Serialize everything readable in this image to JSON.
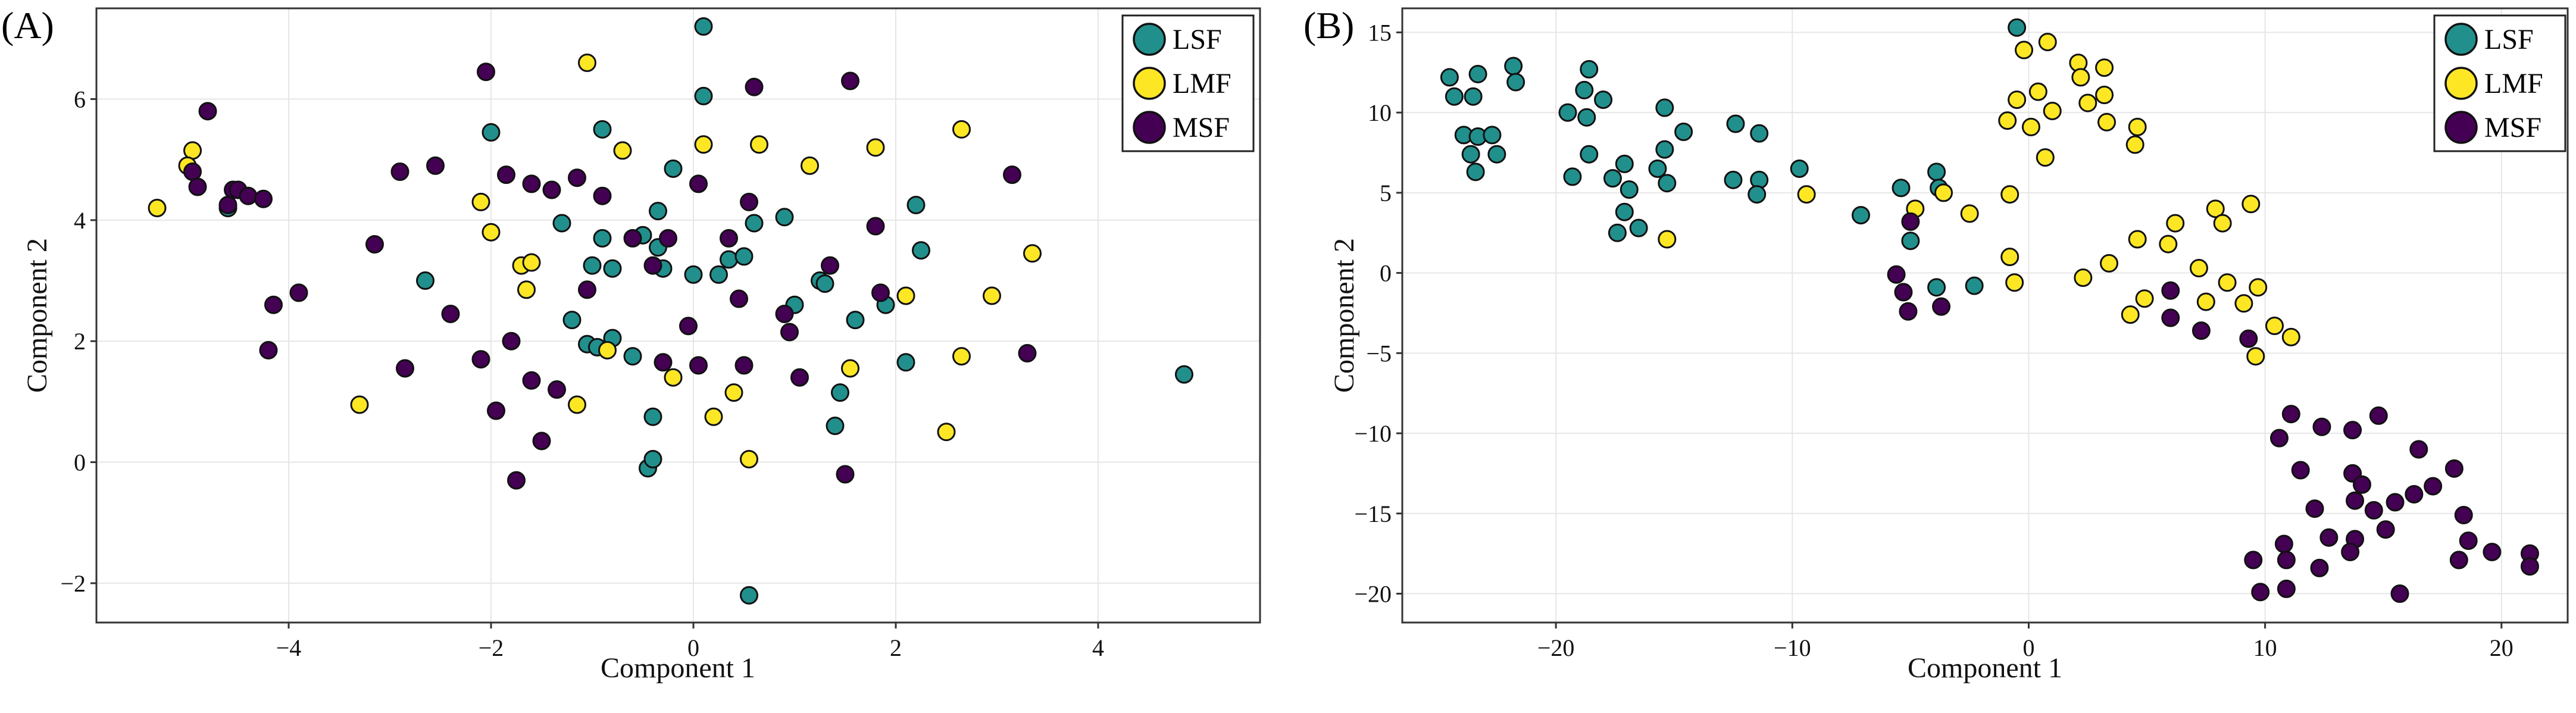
{
  "chart_data": [
    {
      "type": "scatter",
      "panel": "(A)",
      "xlabel": "Component 1",
      "ylabel": "Component 2",
      "xlim": [
        -5.9,
        5.6
      ],
      "ylim": [
        -2.65,
        7.5
      ],
      "xticks": [
        -4,
        -2,
        0,
        2,
        4
      ],
      "yticks": [
        -2,
        0,
        2,
        4,
        6
      ],
      "grid": true,
      "legend_position": "top-right",
      "series": [
        {
          "name": "LSF",
          "color": "#21908d",
          "points": [
            [
              0.1,
              7.2
            ],
            [
              0.1,
              6.05
            ],
            [
              -2.0,
              5.45
            ],
            [
              -0.9,
              5.5
            ],
            [
              -0.2,
              4.85
            ],
            [
              -4.6,
              4.2
            ],
            [
              -1.3,
              3.95
            ],
            [
              -0.35,
              4.15
            ],
            [
              -0.9,
              3.7
            ],
            [
              -0.5,
              3.75
            ],
            [
              -0.35,
              3.55
            ],
            [
              -0.3,
              3.2
            ],
            [
              -1.0,
              3.25
            ],
            [
              -0.8,
              3.2
            ],
            [
              -2.65,
              3.0
            ],
            [
              0.0,
              3.1
            ],
            [
              0.25,
              3.1
            ],
            [
              0.35,
              3.35
            ],
            [
              0.5,
              3.4
            ],
            [
              0.6,
              3.95
            ],
            [
              0.9,
              4.05
            ],
            [
              1.25,
              3.0
            ],
            [
              1.3,
              2.95
            ],
            [
              2.2,
              4.25
            ],
            [
              2.25,
              3.5
            ],
            [
              1.6,
              2.35
            ],
            [
              1.0,
              2.6
            ],
            [
              1.9,
              2.6
            ],
            [
              2.1,
              1.65
            ],
            [
              -1.2,
              2.35
            ],
            [
              -1.05,
              1.95
            ],
            [
              -0.95,
              1.9
            ],
            [
              -0.8,
              2.05
            ],
            [
              -0.6,
              1.75
            ],
            [
              -0.4,
              0.75
            ],
            [
              -0.45,
              -0.1
            ],
            [
              -0.4,
              0.05
            ],
            [
              1.45,
              1.15
            ],
            [
              1.4,
              0.6
            ],
            [
              0.55,
              -2.2
            ],
            [
              4.85,
              1.45
            ]
          ]
        },
        {
          "name": "LMF",
          "color": "#fde725",
          "points": [
            [
              -1.05,
              6.6
            ],
            [
              -0.7,
              5.15
            ],
            [
              -4.95,
              5.15
            ],
            [
              -5.0,
              4.9
            ],
            [
              -5.3,
              4.2
            ],
            [
              0.1,
              5.25
            ],
            [
              0.65,
              5.25
            ],
            [
              1.15,
              4.9
            ],
            [
              1.8,
              5.2
            ],
            [
              2.65,
              5.5
            ],
            [
              -2.1,
              4.3
            ],
            [
              -2.0,
              3.8
            ],
            [
              -1.7,
              3.25
            ],
            [
              -1.6,
              3.3
            ],
            [
              -1.65,
              2.85
            ],
            [
              2.1,
              2.75
            ],
            [
              2.95,
              2.75
            ],
            [
              3.35,
              3.45
            ],
            [
              -0.85,
              1.85
            ],
            [
              -0.2,
              1.4
            ],
            [
              0.2,
              0.75
            ],
            [
              0.4,
              1.15
            ],
            [
              1.55,
              1.55
            ],
            [
              2.65,
              1.75
            ],
            [
              2.5,
              0.5
            ],
            [
              0.55,
              0.05
            ],
            [
              -3.3,
              0.95
            ],
            [
              -1.15,
              0.95
            ]
          ]
        },
        {
          "name": "MSF",
          "color": "#440154",
          "points": [
            [
              -2.05,
              6.45
            ],
            [
              0.6,
              6.2
            ],
            [
              1.55,
              6.3
            ],
            [
              -4.8,
              5.8
            ],
            [
              -4.95,
              4.8
            ],
            [
              -4.9,
              4.55
            ],
            [
              -4.55,
              4.5
            ],
            [
              -4.5,
              4.5
            ],
            [
              -4.4,
              4.4
            ],
            [
              -4.25,
              4.35
            ],
            [
              -4.6,
              4.25
            ],
            [
              -2.55,
              4.9
            ],
            [
              -2.9,
              4.8
            ],
            [
              -1.85,
              4.75
            ],
            [
              -1.6,
              4.6
            ],
            [
              -1.4,
              4.5
            ],
            [
              -1.15,
              4.7
            ],
            [
              -0.9,
              4.4
            ],
            [
              0.05,
              4.6
            ],
            [
              0.55,
              4.3
            ],
            [
              3.15,
              4.75
            ],
            [
              -3.15,
              3.6
            ],
            [
              -0.6,
              3.7
            ],
            [
              -0.4,
              3.25
            ],
            [
              -0.25,
              3.7
            ],
            [
              0.35,
              3.7
            ],
            [
              1.8,
              3.9
            ],
            [
              -4.15,
              2.6
            ],
            [
              -3.9,
              2.8
            ],
            [
              -2.4,
              2.45
            ],
            [
              -1.8,
              2.0
            ],
            [
              -1.05,
              2.85
            ],
            [
              0.45,
              2.7
            ],
            [
              0.9,
              2.45
            ],
            [
              1.35,
              3.25
            ],
            [
              1.85,
              2.8
            ],
            [
              -4.2,
              1.85
            ],
            [
              -2.85,
              1.55
            ],
            [
              -2.1,
              1.7
            ],
            [
              -0.3,
              1.65
            ],
            [
              -0.05,
              2.25
            ],
            [
              0.05,
              1.6
            ],
            [
              0.5,
              1.6
            ],
            [
              0.95,
              2.15
            ],
            [
              1.05,
              1.4
            ],
            [
              3.3,
              1.8
            ],
            [
              -1.6,
              1.35
            ],
            [
              -1.35,
              1.2
            ],
            [
              -1.5,
              0.35
            ],
            [
              -1.95,
              0.85
            ],
            [
              -1.75,
              -0.3
            ],
            [
              1.5,
              -0.2
            ]
          ]
        }
      ]
    },
    {
      "type": "scatter",
      "panel": "(B)",
      "xlabel": "Component 1",
      "ylabel": "Component 2",
      "xlim": [
        -26.5,
        22.8
      ],
      "ylim": [
        -21.8,
        16.5
      ],
      "xticks": [
        -20,
        -10,
        0,
        10,
        20
      ],
      "yticks": [
        -20,
        -15,
        -10,
        -5,
        0,
        5,
        10,
        15
      ],
      "grid": true,
      "legend_position": "top-right",
      "series": [
        {
          "name": "LSF",
          "color": "#21908d",
          "points": [
            [
              -24.5,
              12.2
            ],
            [
              -24.3,
              11.0
            ],
            [
              -23.3,
              12.4
            ],
            [
              -23.5,
              11.0
            ],
            [
              -21.8,
              12.9
            ],
            [
              -21.7,
              11.9
            ],
            [
              -23.9,
              8.6
            ],
            [
              -23.3,
              8.5
            ],
            [
              -22.7,
              8.6
            ],
            [
              -23.6,
              7.4
            ],
            [
              -23.4,
              6.3
            ],
            [
              -22.5,
              7.4
            ],
            [
              -19.5,
              10.0
            ],
            [
              -18.8,
              11.4
            ],
            [
              -18.6,
              12.7
            ],
            [
              -18.7,
              9.7
            ],
            [
              -18.0,
              10.8
            ],
            [
              -19.3,
              6.0
            ],
            [
              -18.6,
              7.4
            ],
            [
              -17.6,
              5.9
            ],
            [
              -17.1,
              6.8
            ],
            [
              -16.9,
              5.2
            ],
            [
              -17.1,
              3.8
            ],
            [
              -17.4,
              2.5
            ],
            [
              -16.5,
              2.8
            ],
            [
              -15.7,
              6.5
            ],
            [
              -15.4,
              7.7
            ],
            [
              -15.4,
              10.3
            ],
            [
              -15.3,
              5.6
            ],
            [
              -14.6,
              8.8
            ],
            [
              -12.4,
              9.3
            ],
            [
              -12.5,
              5.8
            ],
            [
              -11.4,
              8.7
            ],
            [
              -11.4,
              5.8
            ],
            [
              -11.5,
              4.9
            ],
            [
              -9.7,
              6.5
            ],
            [
              -7.1,
              3.6
            ],
            [
              -5.4,
              5.3
            ],
            [
              -3.9,
              6.3
            ],
            [
              -3.8,
              5.3
            ],
            [
              -5.0,
              2.0
            ],
            [
              -3.9,
              -0.9
            ],
            [
              -2.3,
              -0.8
            ],
            [
              -0.5,
              15.3
            ]
          ]
        },
        {
          "name": "LMF",
          "color": "#fde725",
          "points": [
            [
              0.8,
              14.4
            ],
            [
              -0.2,
              13.9
            ],
            [
              2.1,
              13.1
            ],
            [
              3.2,
              12.8
            ],
            [
              0.4,
              11.3
            ],
            [
              2.2,
              12.2
            ],
            [
              3.2,
              11.1
            ],
            [
              -0.5,
              10.8
            ],
            [
              1.0,
              10.1
            ],
            [
              -0.9,
              9.5
            ],
            [
              0.1,
              9.1
            ],
            [
              2.5,
              10.6
            ],
            [
              3.3,
              9.4
            ],
            [
              4.6,
              9.1
            ],
            [
              4.5,
              8.0
            ],
            [
              0.7,
              7.2
            ],
            [
              -9.4,
              4.9
            ],
            [
              -15.3,
              2.1
            ],
            [
              -4.8,
              4.0
            ],
            [
              -3.6,
              5.0
            ],
            [
              -2.5,
              3.7
            ],
            [
              -0.8,
              4.9
            ],
            [
              -0.8,
              1.0
            ],
            [
              -0.6,
              -0.6
            ],
            [
              2.3,
              -0.3
            ],
            [
              3.4,
              0.6
            ],
            [
              4.6,
              2.1
            ],
            [
              6.2,
              3.1
            ],
            [
              5.9,
              1.8
            ],
            [
              7.9,
              4.0
            ],
            [
              8.2,
              3.1
            ],
            [
              9.4,
              4.3
            ],
            [
              7.2,
              0.3
            ],
            [
              8.4,
              -0.6
            ],
            [
              9.7,
              -0.9
            ],
            [
              4.9,
              -1.6
            ],
            [
              4.3,
              -2.6
            ],
            [
              7.5,
              -1.8
            ],
            [
              9.1,
              -1.9
            ],
            [
              10.4,
              -3.3
            ],
            [
              11.1,
              -4.0
            ],
            [
              9.6,
              -5.2
            ]
          ]
        },
        {
          "name": "MSF",
          "color": "#440154",
          "points": [
            [
              -5.6,
              -0.1
            ],
            [
              -5.3,
              -1.2
            ],
            [
              -5.1,
              -2.4
            ],
            [
              -3.7,
              -2.1
            ],
            [
              -5.0,
              3.2
            ],
            [
              6.0,
              -1.1
            ],
            [
              6.0,
              -2.8
            ],
            [
              7.3,
              -3.6
            ],
            [
              9.3,
              -4.1
            ],
            [
              11.1,
              -8.8
            ],
            [
              12.4,
              -9.6
            ],
            [
              13.7,
              -9.8
            ],
            [
              14.8,
              -8.9
            ],
            [
              16.5,
              -11.0
            ],
            [
              10.6,
              -10.3
            ],
            [
              11.5,
              -12.3
            ],
            [
              13.7,
              -12.5
            ],
            [
              14.1,
              -13.2
            ],
            [
              15.5,
              -14.3
            ],
            [
              16.3,
              -13.8
            ],
            [
              17.1,
              -13.3
            ],
            [
              18.0,
              -12.2
            ],
            [
              12.1,
              -14.7
            ],
            [
              13.8,
              -14.2
            ],
            [
              14.6,
              -14.8
            ],
            [
              12.7,
              -16.5
            ],
            [
              13.8,
              -16.6
            ],
            [
              15.1,
              -16.0
            ],
            [
              9.5,
              -17.9
            ],
            [
              10.8,
              -16.9
            ],
            [
              10.9,
              -17.9
            ],
            [
              12.3,
              -18.4
            ],
            [
              13.6,
              -17.4
            ],
            [
              18.4,
              -15.1
            ],
            [
              18.6,
              -16.7
            ],
            [
              19.6,
              -17.4
            ],
            [
              18.2,
              -17.9
            ],
            [
              21.2,
              -17.5
            ],
            [
              21.2,
              -18.3
            ],
            [
              9.8,
              -19.9
            ],
            [
              10.9,
              -19.7
            ],
            [
              15.7,
              -20.0
            ]
          ]
        }
      ]
    }
  ]
}
